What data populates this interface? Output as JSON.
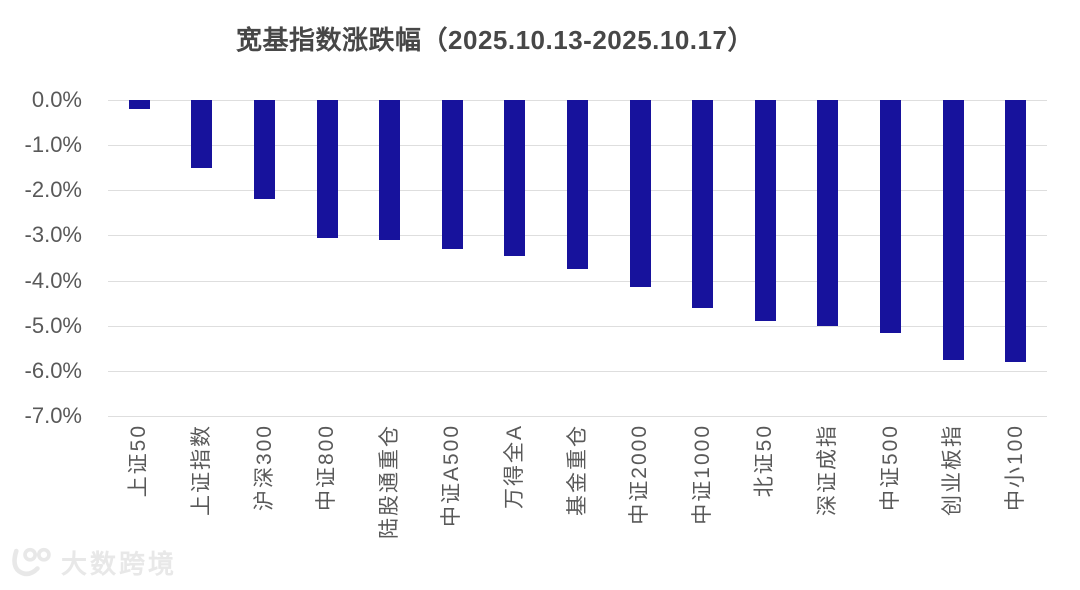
{
  "watermark": {
    "icon": "smiley-100-logo-icon",
    "text": "大数跨境"
  },
  "colors": {
    "bar_fill": "#17129C",
    "gridline": "#DEDEDE",
    "axis_text": "#595959",
    "title_text": "#474747",
    "watermark_text": "#E8E8E8",
    "background": "#FFFFFF"
  },
  "chart_data": {
    "type": "bar",
    "title": "宽基指数涨跌幅（2025.10.13-2025.10.17）",
    "unit": "percent",
    "categories": [
      "上证50",
      "上证指数",
      "沪深300",
      "中证800",
      "陆股通重仓",
      "中证A500",
      "万得全A",
      "基金重仓",
      "中证2000",
      "中证1000",
      "北证50",
      "深证成指",
      "中证500",
      "创业板指",
      "中小100"
    ],
    "values": [
      -0.2,
      -1.5,
      -2.2,
      -3.05,
      -3.1,
      -3.3,
      -3.45,
      -3.75,
      -4.15,
      -4.6,
      -4.9,
      -5.0,
      -5.15,
      -5.75,
      -5.8
    ],
    "xlabel": "",
    "ylabel": "",
    "ylim": [
      -7.0,
      0.0
    ],
    "y_ticks": [
      "0.0%",
      "-1.0%",
      "-2.0%",
      "-3.0%",
      "-4.0%",
      "-5.0%",
      "-6.0%",
      "-7.0%"
    ],
    "grid": "horizontal",
    "legend": "none",
    "bar_orientation": "vertical",
    "x_tick_rotation": -90
  }
}
